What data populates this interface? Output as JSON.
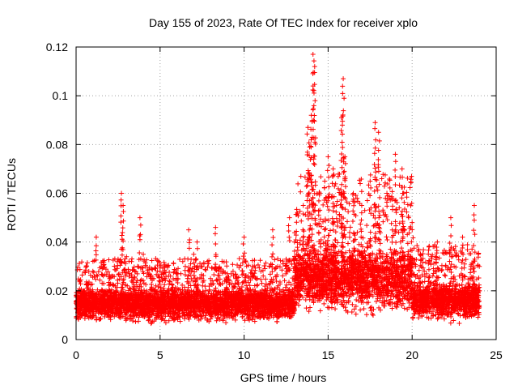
{
  "chart_data": {
    "type": "scatter",
    "title": "Day 155 of 2023, Rate Of TEC Index for receiver xplo",
    "xlabel": "GPS time / hours",
    "ylabel": "ROTI / TECUs",
    "xlim": [
      0,
      25
    ],
    "ylim": [
      0,
      0.12
    ],
    "xticks": [
      0,
      5,
      10,
      15,
      20,
      25
    ],
    "xtick_labels": [
      "0",
      "5",
      "10",
      "15",
      "20",
      "25"
    ],
    "yticks": [
      0,
      0.02,
      0.04,
      0.06,
      0.08,
      0.1,
      0.12
    ],
    "ytick_labels": [
      "0",
      "0.02",
      "0.04",
      "0.06",
      "0.08",
      "0.1",
      "0.12"
    ],
    "grid": true,
    "marker": "plus",
    "color": "#ff0000",
    "series": [
      {
        "name": "ROTI",
        "x": [
          0.0,
          0.5,
          1.0,
          1.2,
          1.5,
          2.0,
          2.5,
          2.7,
          2.8,
          3.0,
          3.3,
          3.5,
          3.8,
          4.0,
          4.5,
          5.0,
          5.5,
          6.0,
          6.5,
          6.7,
          7.0,
          7.2,
          7.5,
          8.0,
          8.3,
          8.5,
          9.0,
          9.5,
          10.0,
          10.5,
          11.0,
          11.5,
          11.7,
          12.0,
          12.5,
          12.7,
          13.0,
          13.5,
          13.8,
          13.9,
          14.0,
          14.1,
          14.2,
          14.5,
          14.8,
          15.0,
          15.3,
          15.5,
          15.8,
          15.9,
          16.0,
          16.5,
          17.0,
          17.5,
          17.8,
          18.0,
          18.5,
          18.8,
          19.0,
          19.4,
          19.5,
          20.0,
          20.2,
          20.5,
          21.0,
          21.5,
          22.0,
          22.3,
          22.5,
          23.0,
          23.5,
          23.7,
          24.0
        ],
        "y": [
          0.018,
          0.02,
          0.028,
          0.042,
          0.03,
          0.025,
          0.033,
          0.06,
          0.055,
          0.034,
          0.032,
          0.028,
          0.05,
          0.035,
          0.029,
          0.028,
          0.026,
          0.027,
          0.03,
          0.045,
          0.035,
          0.04,
          0.03,
          0.025,
          0.046,
          0.028,
          0.027,
          0.025,
          0.042,
          0.03,
          0.028,
          0.03,
          0.045,
          0.03,
          0.033,
          0.05,
          0.04,
          0.045,
          0.087,
          0.079,
          0.092,
          0.117,
          0.112,
          0.06,
          0.065,
          0.075,
          0.07,
          0.055,
          0.091,
          0.107,
          0.075,
          0.06,
          0.055,
          0.065,
          0.089,
          0.085,
          0.06,
          0.058,
          0.076,
          0.07,
          0.06,
          0.048,
          0.03,
          0.035,
          0.038,
          0.04,
          0.03,
          0.05,
          0.03,
          0.042,
          0.03,
          0.055,
          0.03
        ]
      }
    ],
    "baseline": {
      "description": "dense band of low ROTI values",
      "segments": [
        {
          "x_start": 0,
          "x_end": 13,
          "y_low": 0.006,
          "y_mid": 0.014,
          "y_high": 0.022
        },
        {
          "x_start": 13,
          "x_end": 20,
          "y_low": 0.008,
          "y_mid": 0.02,
          "y_high": 0.04
        },
        {
          "x_start": 20,
          "x_end": 24,
          "y_low": 0.006,
          "y_mid": 0.015,
          "y_high": 0.025
        }
      ]
    }
  }
}
